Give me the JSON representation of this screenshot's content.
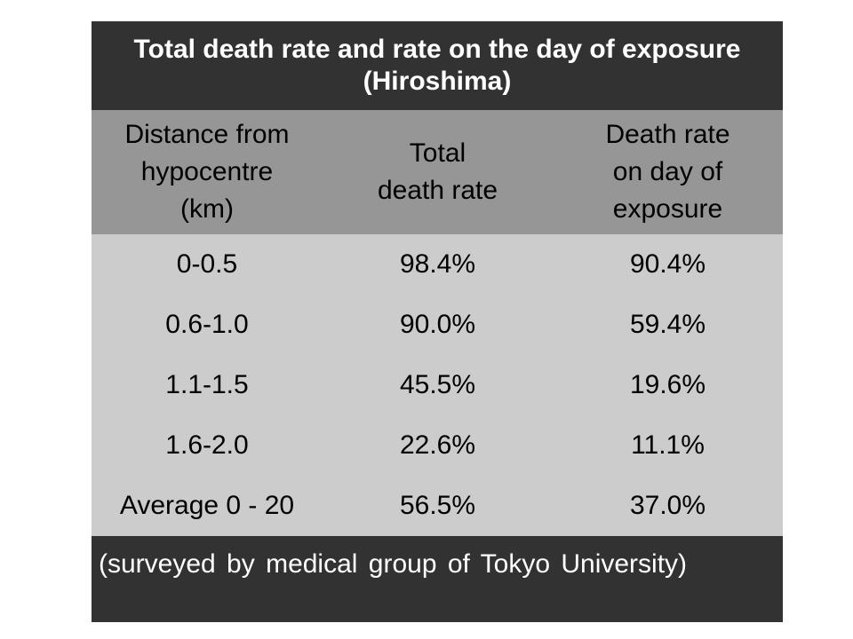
{
  "table": {
    "title": "Total death rate and rate on the day of exposure (Hiroshima)",
    "headers": [
      "Distance from\nhypocentre\n(km)",
      "Total\ndeath rate",
      "Death rate\non day of\nexposure"
    ],
    "rows": [
      [
        "0-0.5",
        "98.4%",
        "90.4%"
      ],
      [
        "0.6-1.0",
        "90.0%",
        "59.4%"
      ],
      [
        "1.1-1.5",
        "45.5%",
        "19.6%"
      ],
      [
        "1.6-2.0",
        "22.6%",
        "11.1%"
      ],
      [
        "Average 0 - 20",
        "56.5%",
        "37.0%"
      ]
    ],
    "footnote": "(surveyed by medical group of Tokyo University)",
    "colors": {
      "title_bg": "#323232",
      "header_bg": "#969696",
      "body_bg": "#cccccc",
      "footer_bg": "#323232"
    }
  }
}
